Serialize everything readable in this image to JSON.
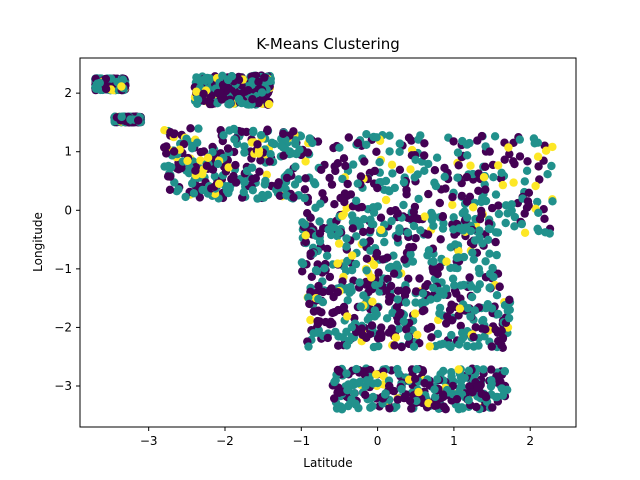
{
  "chart_data": {
    "type": "scatter",
    "title": "K-Means Clustering",
    "xlabel": "Latitude",
    "ylabel": "Longitude",
    "xlim": [
      -3.9,
      2.6
    ],
    "ylim": [
      -3.7,
      2.6
    ],
    "xticks": [
      -3,
      -2,
      -1,
      0,
      1,
      2
    ],
    "yticks": [
      -3,
      -2,
      -1,
      0,
      1,
      2
    ],
    "grid": false,
    "legend": "none",
    "colors": {
      "cluster_0": "#440154",
      "cluster_1": "#21918c",
      "cluster_2": "#fde725"
    },
    "points_per_cluster": 80,
    "regions": [
      {
        "x": [
          -3.7,
          -3.3
        ],
        "y": [
          2.05,
          2.25
        ]
      },
      {
        "x": [
          -3.45,
          -3.1
        ],
        "y": [
          1.5,
          1.6
        ]
      },
      {
        "x": [
          -2.4,
          -1.4
        ],
        "y": [
          1.8,
          2.3
        ]
      },
      {
        "x": [
          -2.8,
          -1.0
        ],
        "y": [
          0.2,
          1.4
        ]
      },
      {
        "x": [
          -1.0,
          2.3
        ],
        "y": [
          -0.4,
          1.3
        ]
      },
      {
        "x": [
          -1.0,
          1.6
        ],
        "y": [
          -1.4,
          -0.1
        ]
      },
      {
        "x": [
          -0.95,
          1.75
        ],
        "y": [
          -2.35,
          -1.3
        ]
      },
      {
        "x": [
          -0.6,
          1.7
        ],
        "y": [
          -3.4,
          -2.7
        ]
      }
    ]
  }
}
